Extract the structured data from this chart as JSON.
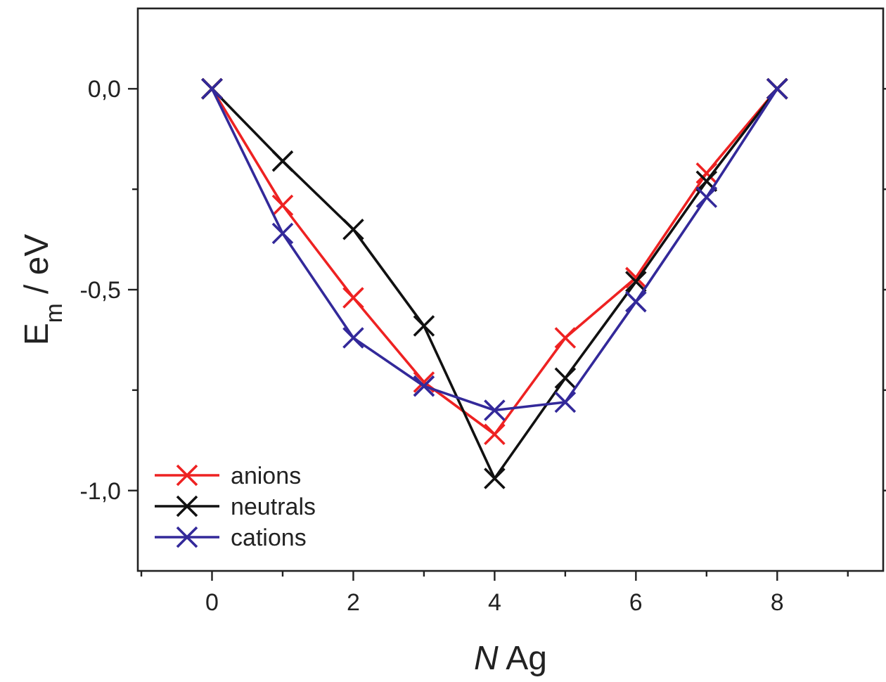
{
  "chart_data": {
    "type": "line",
    "xlabel": "N Ag",
    "ylabel": "E$_{m}$ / eV",
    "x": [
      0,
      1,
      2,
      3,
      4,
      5,
      6,
      7,
      8
    ],
    "series": [
      {
        "name": "anions",
        "color": "#ee2222",
        "values": [
          0,
          -0.29,
          -0.52,
          -0.73,
          -0.86,
          -0.62,
          -0.47,
          -0.21,
          0
        ]
      },
      {
        "name": "neutrals",
        "color": "#111111",
        "values": [
          0,
          -0.18,
          -0.35,
          -0.59,
          -0.97,
          -0.72,
          -0.48,
          -0.23,
          0
        ]
      },
      {
        "name": "cations",
        "color": "#33299a",
        "values": [
          0,
          -0.36,
          -0.62,
          -0.74,
          -0.8,
          -0.78,
          -0.53,
          -0.27,
          0
        ]
      }
    ],
    "xlim": [
      -1.05,
      9.5
    ],
    "ylim": [
      -1.2,
      0.2
    ],
    "xticks": [
      {
        "value": -1,
        "label": null
      },
      0,
      {
        "value": 1,
        "label": null
      },
      2,
      {
        "value": 3,
        "label": null
      },
      4,
      {
        "value": 5,
        "label": null
      },
      6,
      {
        "value": 7,
        "label": null
      },
      8,
      {
        "value": 9,
        "label": null
      }
    ],
    "yticks": [
      {
        "value": 0,
        "label": "0,0"
      },
      {
        "value": -0.25,
        "label": null
      },
      {
        "value": -0.5,
        "label": "-0,5"
      },
      {
        "value": -0.75,
        "label": null
      },
      {
        "value": -1,
        "label": "-1,0"
      }
    ],
    "marker": "cross",
    "line_style": "solid",
    "legend": "bottom left",
    "grid": false
  }
}
